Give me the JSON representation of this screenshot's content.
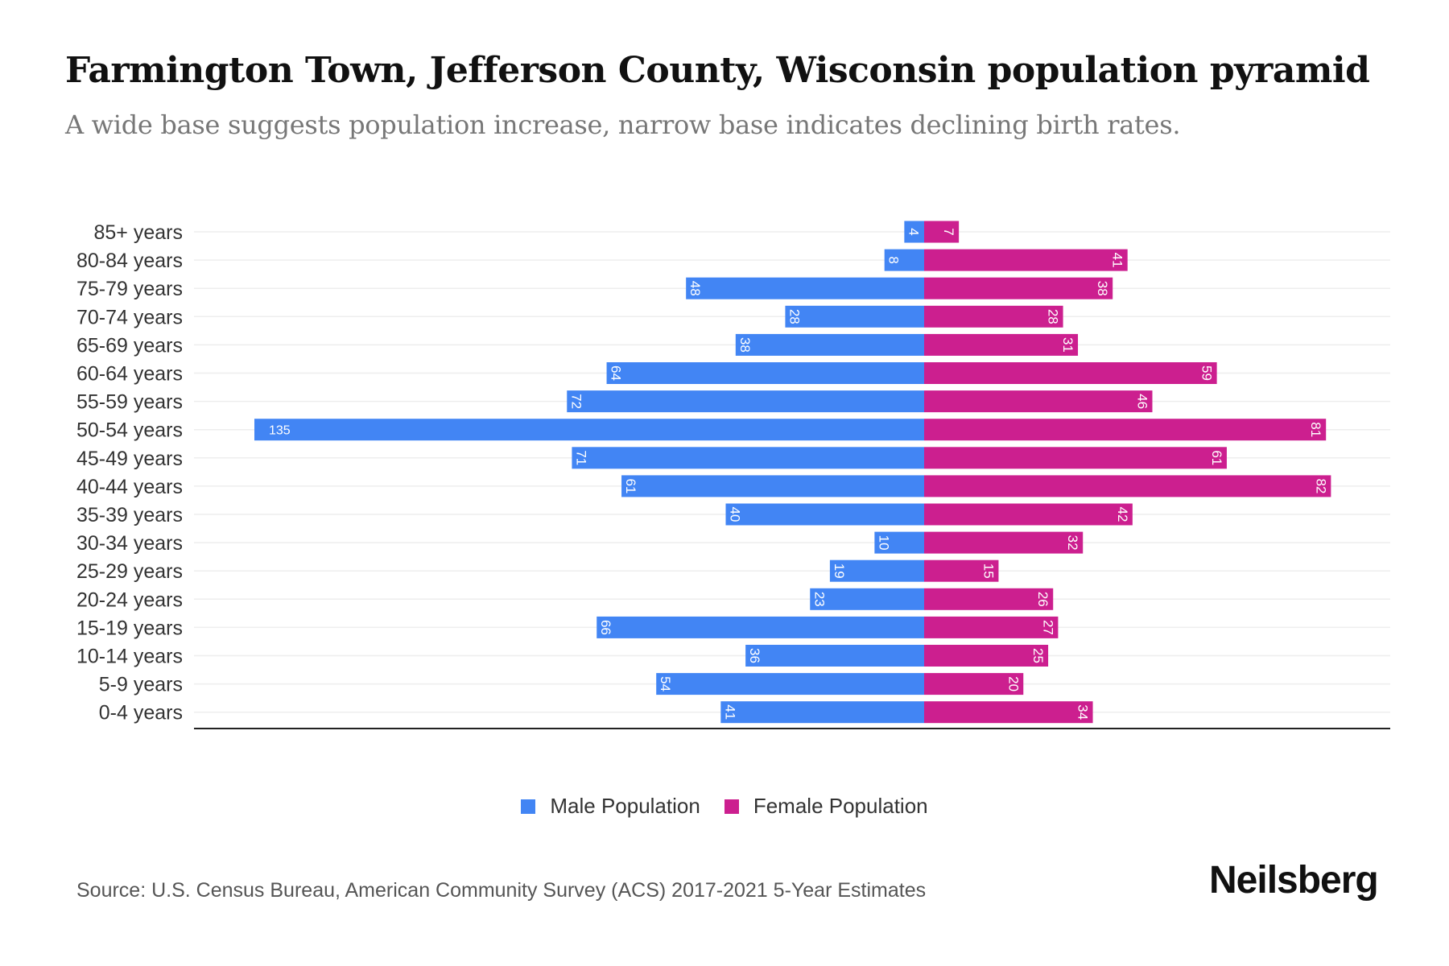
{
  "header": {
    "title": "Farmington Town, Jefferson County, Wisconsin population pyramid",
    "subtitle": "A wide base suggests population increase, narrow base indicates declining birth rates."
  },
  "chart_data": {
    "type": "bar",
    "orientation": "horizontal-pyramid",
    "categories": [
      "85+ years",
      "80-84 years",
      "75-79 years",
      "70-74 years",
      "65-69 years",
      "60-64 years",
      "55-59 years",
      "50-54 years",
      "45-49 years",
      "40-44 years",
      "35-39 years",
      "30-34 years",
      "25-29 years",
      "20-24 years",
      "15-19 years",
      "10-14 years",
      "5-9 years",
      "0-4 years"
    ],
    "series": [
      {
        "name": "Male Population",
        "color": "#4285f4",
        "values": [
          4,
          8,
          48,
          28,
          38,
          64,
          72,
          135,
          71,
          61,
          40,
          10,
          19,
          23,
          66,
          36,
          54,
          41
        ]
      },
      {
        "name": "Female Population",
        "color": "#cc1f8f",
        "values": [
          7,
          41,
          38,
          28,
          31,
          59,
          46,
          81,
          61,
          82,
          42,
          32,
          15,
          26,
          27,
          25,
          20,
          34
        ]
      }
    ],
    "xlim": [
      -135,
      135
    ],
    "grid": true,
    "legend_position": "bottom-center"
  },
  "footer": {
    "source": "Source: U.S. Census Bureau, American Community Survey (ACS) 2017-2021 5-Year Estimates",
    "logo": "Neilsberg"
  }
}
